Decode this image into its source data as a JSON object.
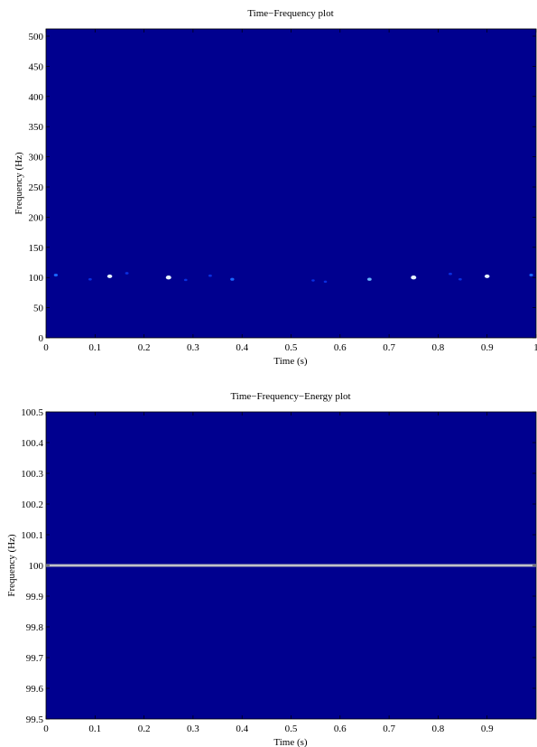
{
  "chart_data": [
    {
      "type": "heatmap",
      "title": "Time−Frequency plot",
      "xlabel": "Time (s)",
      "ylabel": "Frequency (Hz)",
      "xlim": [
        0,
        1
      ],
      "ylim": [
        0,
        512
      ],
      "xticks": [
        "0",
        "0.1",
        "0.2",
        "0.3",
        "0.4",
        "0.5",
        "0.6",
        "0.7",
        "0.8",
        "0.9",
        "1"
      ],
      "yticks": [
        "0",
        "50",
        "100",
        "150",
        "200",
        "250",
        "300",
        "350",
        "400",
        "450",
        "500"
      ],
      "background_color": "#00008f",
      "points": [
        {
          "x": 0.02,
          "y": 104,
          "level": 0.45
        },
        {
          "x": 0.09,
          "y": 97,
          "level": 0.25
        },
        {
          "x": 0.13,
          "y": 102,
          "level": 0.85
        },
        {
          "x": 0.165,
          "y": 107,
          "level": 0.3
        },
        {
          "x": 0.25,
          "y": 100,
          "level": 1.0
        },
        {
          "x": 0.285,
          "y": 96,
          "level": 0.25
        },
        {
          "x": 0.335,
          "y": 103,
          "level": 0.3
        },
        {
          "x": 0.38,
          "y": 97,
          "level": 0.45
        },
        {
          "x": 0.545,
          "y": 95,
          "level": 0.2
        },
        {
          "x": 0.57,
          "y": 93,
          "level": 0.2
        },
        {
          "x": 0.66,
          "y": 97,
          "level": 0.55
        },
        {
          "x": 0.75,
          "y": 100,
          "level": 1.0
        },
        {
          "x": 0.825,
          "y": 106,
          "level": 0.3
        },
        {
          "x": 0.845,
          "y": 97,
          "level": 0.25
        },
        {
          "x": 0.9,
          "y": 102,
          "level": 0.85
        },
        {
          "x": 0.99,
          "y": 104,
          "level": 0.4
        }
      ]
    },
    {
      "type": "heatmap",
      "title": "Time−Frequency−Energy plot",
      "xlabel": "Time (s)",
      "ylabel": "Frequency (Hz)",
      "xlim": [
        0,
        1
      ],
      "ylim": [
        99.5,
        100.5
      ],
      "xticks": [
        "0",
        "0.1",
        "0.2",
        "0.3",
        "0.4",
        "0.5",
        "0.6",
        "0.7",
        "0.8",
        "0.9"
      ],
      "yticks": [
        "99.5",
        "99.6",
        "99.7",
        "99.8",
        "99.9",
        "100",
        "100.1",
        "100.2",
        "100.3",
        "100.4",
        "100.5"
      ],
      "background_color": "#00008f",
      "line": {
        "frequency": 100,
        "x_start": 0,
        "x_end": 1,
        "color": "#a8aab0"
      }
    }
  ]
}
